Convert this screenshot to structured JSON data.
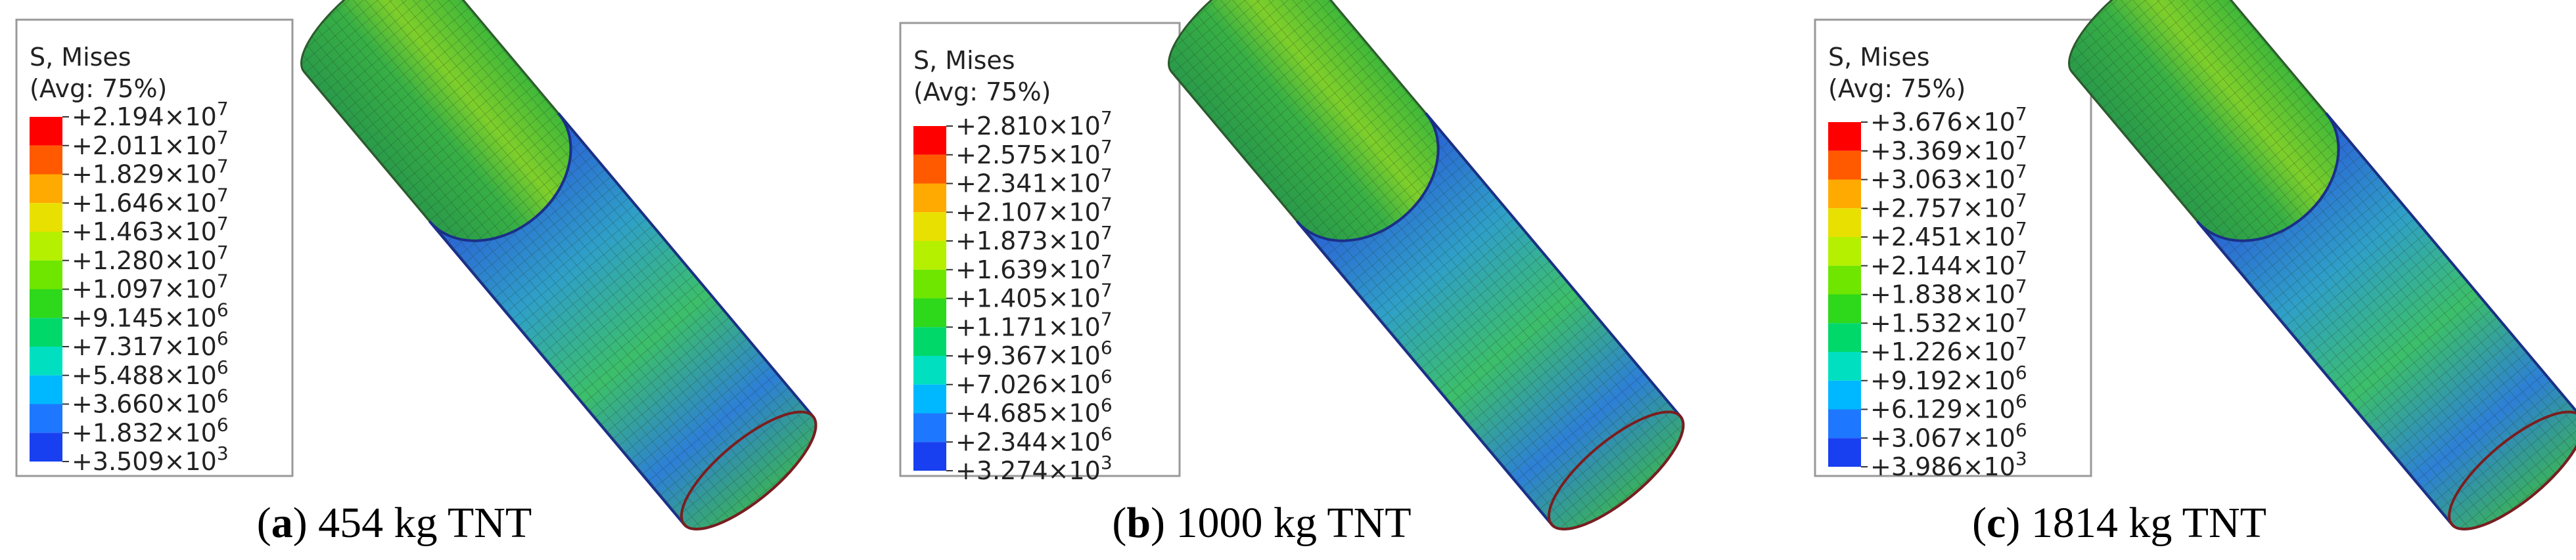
{
  "panels": [
    {
      "legend": {
        "title": "S, Mises",
        "subtitle": "(Avg: 75%)",
        "multiplier": "×10",
        "entries": [
          {
            "m": "+2.194",
            "e": "7"
          },
          {
            "m": "+2.011",
            "e": "7"
          },
          {
            "m": "+1.829",
            "e": "7"
          },
          {
            "m": "+1.646",
            "e": "7"
          },
          {
            "m": "+1.463",
            "e": "7"
          },
          {
            "m": "+1.280",
            "e": "7"
          },
          {
            "m": "+1.097",
            "e": "7"
          },
          {
            "m": "+9.145",
            "e": "6"
          },
          {
            "m": "+7.317",
            "e": "6"
          },
          {
            "m": "+5.488",
            "e": "6"
          },
          {
            "m": "+3.660",
            "e": "6"
          },
          {
            "m": "+1.832",
            "e": "6"
          },
          {
            "m": "+3.509",
            "e": "3"
          }
        ]
      },
      "caption": {
        "prefix": "(",
        "letter": "a",
        "text": ") 454 kg TNT"
      }
    },
    {
      "legend": {
        "title": "S, Mises",
        "subtitle": "(Avg: 75%)",
        "multiplier": "×10",
        "entries": [
          {
            "m": "+2.810",
            "e": "7"
          },
          {
            "m": "+2.575",
            "e": "7"
          },
          {
            "m": "+2.341",
            "e": "7"
          },
          {
            "m": "+2.107",
            "e": "7"
          },
          {
            "m": "+1.873",
            "e": "7"
          },
          {
            "m": "+1.639",
            "e": "7"
          },
          {
            "m": "+1.405",
            "e": "7"
          },
          {
            "m": "+1.171",
            "e": "7"
          },
          {
            "m": "+9.367",
            "e": "6"
          },
          {
            "m": "+7.026",
            "e": "6"
          },
          {
            "m": "+4.685",
            "e": "6"
          },
          {
            "m": "+2.344",
            "e": "6"
          },
          {
            "m": "+3.274",
            "e": "3"
          }
        ]
      },
      "caption": {
        "prefix": "(",
        "letter": "b",
        "text": ") 1000 kg TNT"
      }
    },
    {
      "legend": {
        "title": "S, Mises",
        "subtitle": "(Avg: 75%)",
        "multiplier": "×10",
        "entries": [
          {
            "m": "+3.676",
            "e": "7"
          },
          {
            "m": "+3.369",
            "e": "7"
          },
          {
            "m": "+3.063",
            "e": "7"
          },
          {
            "m": "+2.757",
            "e": "7"
          },
          {
            "m": "+2.451",
            "e": "7"
          },
          {
            "m": "+2.144",
            "e": "7"
          },
          {
            "m": "+1.838",
            "e": "7"
          },
          {
            "m": "+1.532",
            "e": "7"
          },
          {
            "m": "+1.226",
            "e": "7"
          },
          {
            "m": "+9.192",
            "e": "6"
          },
          {
            "m": "+6.129",
            "e": "6"
          },
          {
            "m": "+3.067",
            "e": "6"
          },
          {
            "m": "+3.986",
            "e": "3"
          }
        ]
      },
      "caption": {
        "prefix": "(",
        "letter": "c",
        "text": ") 1814 kg TNT"
      }
    }
  ]
}
